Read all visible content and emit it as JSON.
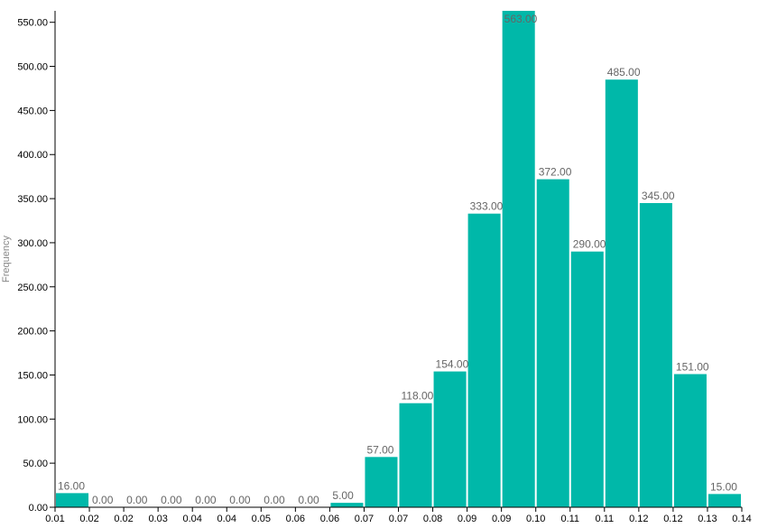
{
  "chart_data": {
    "type": "bar",
    "bar_color": "#00b8a9",
    "label_color": "#666666",
    "ylabel": "Frequency",
    "ylim": [
      0,
      563
    ],
    "yticks": [
      "0.00",
      "50.00",
      "100.00",
      "150.00",
      "200.00",
      "250.00",
      "300.00",
      "350.00",
      "400.00",
      "450.00",
      "500.00",
      "550.00"
    ],
    "ytick_values": [
      0,
      50,
      100,
      150,
      200,
      250,
      300,
      350,
      400,
      450,
      500,
      550
    ],
    "xticks": [
      "0.01",
      "0.02",
      "0.02",
      "0.03",
      "0.04",
      "0.04",
      "0.05",
      "0.06",
      "0.06",
      "0.07",
      "0.07",
      "0.08",
      "0.09",
      "0.09",
      "0.10",
      "0.11",
      "0.11",
      "0.12",
      "0.12",
      "0.13",
      "0.14"
    ],
    "values": [
      16,
      0,
      0,
      0,
      0,
      0,
      0,
      0,
      5,
      57,
      118,
      154,
      333,
      563,
      372,
      290,
      485,
      345,
      151,
      15
    ],
    "value_labels": [
      "16.00",
      "0.00",
      "0.00",
      "0.00",
      "0.00",
      "0.00",
      "0.00",
      "0.00",
      "5.00",
      "57.00",
      "118.00",
      "154.00",
      "333.00",
      "563.00",
      "372.00",
      "290.00",
      "485.00",
      "345.00",
      "151.00",
      "15.00"
    ],
    "grid": false,
    "legend": "none"
  }
}
